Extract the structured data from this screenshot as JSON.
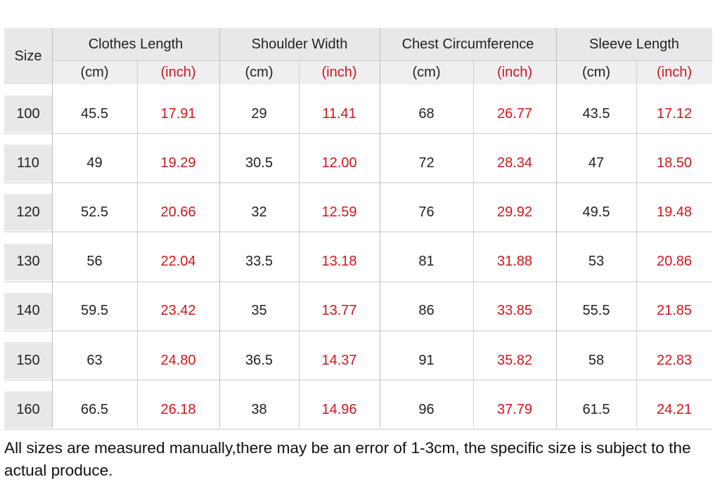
{
  "header": {
    "size_label": "Size",
    "columns": [
      {
        "name": "Clothes Length",
        "units": [
          "(cm)",
          "(inch)"
        ]
      },
      {
        "name": "Shoulder Width",
        "units": [
          "(cm)",
          "(inch)"
        ]
      },
      {
        "name": "Chest Circumference",
        "units": [
          "(cm)",
          "(inch)"
        ]
      },
      {
        "name": "Sleeve Length",
        "units": [
          "(cm)",
          "(inch)"
        ]
      }
    ]
  },
  "table": {
    "rows": [
      [
        "100",
        "45.5",
        "17.91",
        "29",
        "11.41",
        "68",
        "26.77",
        "43.5",
        "17.12"
      ],
      [
        "110",
        "49",
        "19.29",
        "30.5",
        "12.00",
        "72",
        "28.34",
        "47",
        "18.50"
      ],
      [
        "120",
        "52.5",
        "20.66",
        "32",
        "12.59",
        "76",
        "29.92",
        "49.5",
        "19.48"
      ],
      [
        "130",
        "56",
        "22.04",
        "33.5",
        "13.18",
        "81",
        "31.88",
        "53",
        "20.86"
      ],
      [
        "140",
        "59.5",
        "23.42",
        "35",
        "13.77",
        "86",
        "33.85",
        "55.5",
        "21.85"
      ],
      [
        "150",
        "63",
        "24.80",
        "36.5",
        "14.37",
        "91",
        "35.82",
        "58",
        "22.83"
      ],
      [
        "160",
        "66.5",
        "26.18",
        "38",
        "14.96",
        "96",
        "37.79",
        "61.5",
        "24.21"
      ]
    ]
  },
  "note": "All sizes are measured manually,there may be an error of 1-3cm, the specific size is subject to the actual produce."
}
